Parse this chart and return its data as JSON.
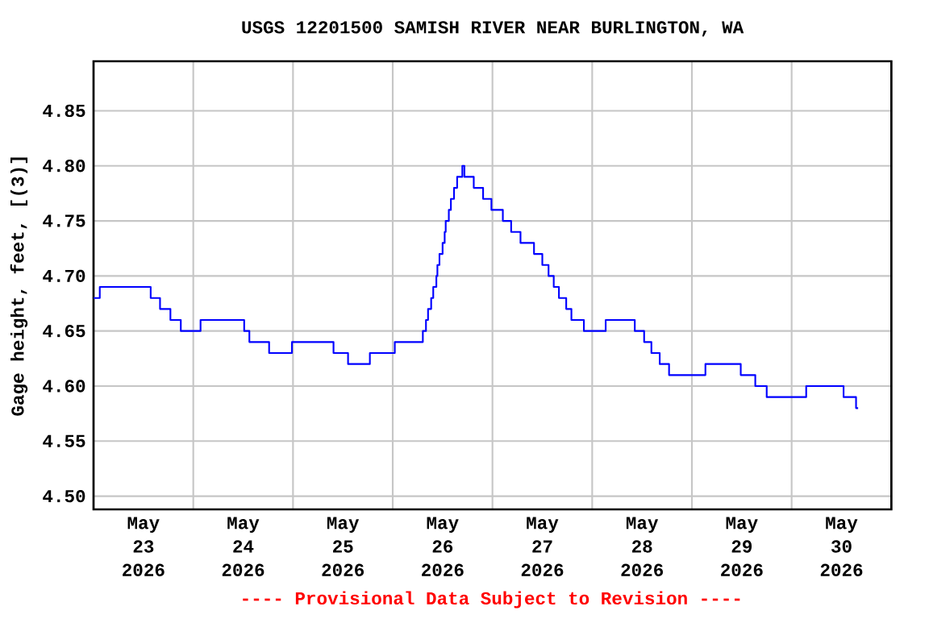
{
  "chart_data": {
    "type": "step",
    "title": "USGS 12201500 SAMISH RIVER NEAR BURLINGTON, WA",
    "ylabel": "Gage height, feet, [(3)]",
    "annotations": [
      "---- Provisional Data Subject to Revision ----"
    ],
    "x": [
      "2026-05-23T00:00",
      "2026-05-23T01:30",
      "2026-05-23T13:45",
      "2026-05-23T16:00",
      "2026-05-23T18:30",
      "2026-05-23T21:00",
      "2026-05-24T01:45",
      "2026-05-24T12:15",
      "2026-05-24T13:30",
      "2026-05-24T18:15",
      "2026-05-24T23:45",
      "2026-05-25T09:45",
      "2026-05-25T13:15",
      "2026-05-25T18:30",
      "2026-05-26T00:30",
      "2026-05-26T07:15",
      "2026-05-26T08:00",
      "2026-05-26T08:30",
      "2026-05-26T09:15",
      "2026-05-26T09:45",
      "2026-05-26T10:30",
      "2026-05-26T10:45",
      "2026-05-26T11:15",
      "2026-05-26T12:00",
      "2026-05-26T12:30",
      "2026-05-26T12:45",
      "2026-05-26T13:30",
      "2026-05-26T14:00",
      "2026-05-26T14:45",
      "2026-05-26T15:30",
      "2026-05-26T16:45",
      "2026-05-26T17:15",
      "2026-05-26T19:30",
      "2026-05-26T21:45",
      "2026-05-26T23:45",
      "2026-05-27T02:30",
      "2026-05-27T04:30",
      "2026-05-27T06:45",
      "2026-05-27T10:00",
      "2026-05-27T12:00",
      "2026-05-27T13:30",
      "2026-05-27T14:45",
      "2026-05-27T16:00",
      "2026-05-27T17:45",
      "2026-05-27T19:00",
      "2026-05-27T22:00",
      "2026-05-28T03:15",
      "2026-05-28T10:15",
      "2026-05-28T12:30",
      "2026-05-28T14:15",
      "2026-05-28T16:15",
      "2026-05-28T18:30",
      "2026-05-29T03:15",
      "2026-05-29T11:45",
      "2026-05-29T15:15",
      "2026-05-29T18:00",
      "2026-05-30T03:30",
      "2026-05-30T12:30",
      "2026-05-30T15:30",
      "2026-05-30T16:00"
    ],
    "series": [
      {
        "color": "#0000ff",
        "values": [
          4.68,
          4.69,
          4.68,
          4.67,
          4.66,
          4.65,
          4.66,
          4.65,
          4.64,
          4.63,
          4.64,
          4.63,
          4.62,
          4.63,
          4.64,
          4.65,
          4.66,
          4.67,
          4.68,
          4.69,
          4.7,
          4.71,
          4.72,
          4.73,
          4.74,
          4.75,
          4.76,
          4.77,
          4.78,
          4.79,
          4.8,
          4.79,
          4.78,
          4.77,
          4.76,
          4.75,
          4.74,
          4.73,
          4.72,
          4.71,
          4.7,
          4.69,
          4.68,
          4.67,
          4.66,
          4.65,
          4.66,
          4.65,
          4.64,
          4.63,
          4.62,
          4.61,
          4.62,
          4.61,
          4.6,
          4.59,
          4.6,
          4.59,
          4.58,
          4.58
        ]
      }
    ],
    "xlim": [
      "2026-05-23T00:00",
      "2026-05-31T00:00"
    ],
    "xticks": [
      {
        "value": "2026-05-23T00:00",
        "label": null
      },
      {
        "value": "2026-05-23T12:00",
        "label": "May 23 2026"
      },
      {
        "value": "2026-05-24T00:00",
        "label": null
      },
      {
        "value": "2026-05-24T12:00",
        "label": "May 24 2026"
      },
      {
        "value": "2026-05-25T00:00",
        "label": null
      },
      {
        "value": "2026-05-25T12:00",
        "label": "May 25 2026"
      },
      {
        "value": "2026-05-26T00:00",
        "label": null
      },
      {
        "value": "2026-05-26T12:00",
        "label": "May 26 2026"
      },
      {
        "value": "2026-05-27T00:00",
        "label": null
      },
      {
        "value": "2026-05-27T12:00",
        "label": "May 27 2026"
      },
      {
        "value": "2026-05-28T00:00",
        "label": null
      },
      {
        "value": "2026-05-28T12:00",
        "label": "May 28 2026"
      },
      {
        "value": "2026-05-29T00:00",
        "label": null
      },
      {
        "value": "2026-05-29T12:00",
        "label": "May 29 2026"
      },
      {
        "value": "2026-05-30T00:00",
        "label": null
      },
      {
        "value": "2026-05-30T12:00",
        "label": "May 30 2026"
      },
      {
        "value": "2026-05-31T00:00",
        "label": null
      }
    ],
    "ylim": [
      4.488,
      4.895
    ],
    "yticks": [
      {
        "value": 4.5,
        "label": "4.50"
      },
      {
        "value": 4.55,
        "label": "4.55"
      },
      {
        "value": 4.6,
        "label": "4.60"
      },
      {
        "value": 4.65,
        "label": "4.65"
      },
      {
        "value": 4.7,
        "label": "4.70"
      },
      {
        "value": 4.75,
        "label": "4.75"
      },
      {
        "value": 4.8,
        "label": "4.80"
      },
      {
        "value": 4.85,
        "label": "4.85"
      }
    ],
    "grid": true
  }
}
